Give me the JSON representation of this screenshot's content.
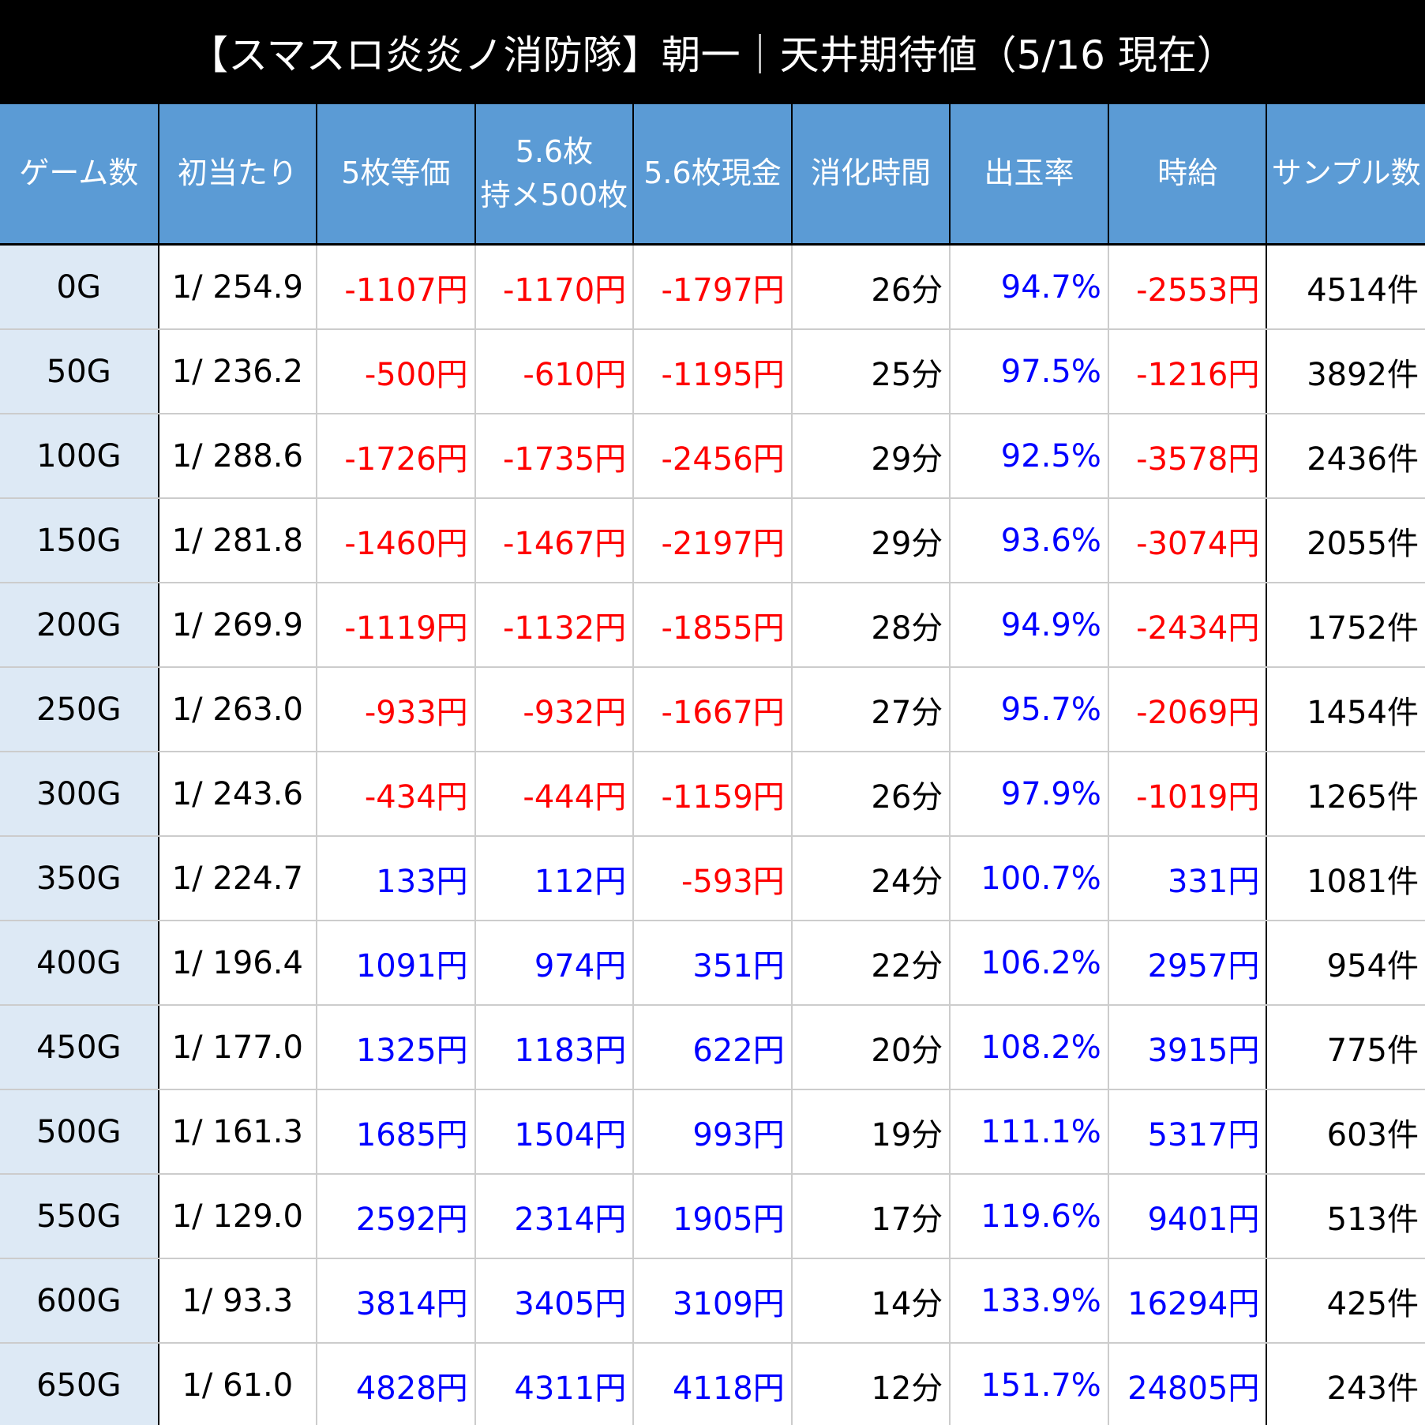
{
  "header": {
    "title": "【スマスロ炎炎ノ消防隊】朝一｜天井期待値（5/16 現在）"
  },
  "table": {
    "columns": [
      "ゲーム数",
      "初当たり",
      "5枚等価",
      "5.6枚\n持メ500枚",
      "5.6枚現金",
      "消化時間",
      "出玉率",
      "時給",
      "サンプル数"
    ],
    "rows": [
      [
        "0G",
        "1/ 254.9",
        "-1107円",
        "-1170円",
        "-1797円",
        "26分",
        "94.7%",
        "-2553円",
        "4514件"
      ],
      [
        "50G",
        "1/ 236.2",
        "-500円",
        "-610円",
        "-1195円",
        "25分",
        "97.5%",
        "-1216円",
        "3892件"
      ],
      [
        "100G",
        "1/ 288.6",
        "-1726円",
        "-1735円",
        "-2456円",
        "29分",
        "92.5%",
        "-3578円",
        "2436件"
      ],
      [
        "150G",
        "1/ 281.8",
        "-1460円",
        "-1467円",
        "-2197円",
        "29分",
        "93.6%",
        "-3074円",
        "2055件"
      ],
      [
        "200G",
        "1/ 269.9",
        "-1119円",
        "-1132円",
        "-1855円",
        "28分",
        "94.9%",
        "-2434円",
        "1752件"
      ],
      [
        "250G",
        "1/ 263.0",
        "-933円",
        "-932円",
        "-1667円",
        "27分",
        "95.7%",
        "-2069円",
        "1454件"
      ],
      [
        "300G",
        "1/ 243.6",
        "-434円",
        "-444円",
        "-1159円",
        "26分",
        "97.9%",
        "-1019円",
        "1265件"
      ],
      [
        "350G",
        "1/ 224.7",
        "133円",
        "112円",
        "-593円",
        "24分",
        "100.7%",
        "331円",
        "1081件"
      ],
      [
        "400G",
        "1/ 196.4",
        "1091円",
        "974円",
        "351円",
        "22分",
        "106.2%",
        "2957円",
        "954件"
      ],
      [
        "450G",
        "1/ 177.0",
        "1325円",
        "1183円",
        "622円",
        "20分",
        "108.2%",
        "3915円",
        "775件"
      ],
      [
        "500G",
        "1/ 161.3",
        "1685円",
        "1504円",
        "993円",
        "19分",
        "111.1%",
        "5317円",
        "603件"
      ],
      [
        "550G",
        "1/ 129.0",
        "2592円",
        "2314円",
        "1905円",
        "17分",
        "119.6%",
        "9401円",
        "513件"
      ],
      [
        "600G",
        "1/ 93.3",
        "3814円",
        "3405円",
        "3109円",
        "14分",
        "133.9%",
        "16294円",
        "425件"
      ],
      [
        "650G",
        "1/ 61.0",
        "4828円",
        "4311円",
        "4118円",
        "12分",
        "151.7%",
        "24805円",
        "243件"
      ]
    ]
  }
}
